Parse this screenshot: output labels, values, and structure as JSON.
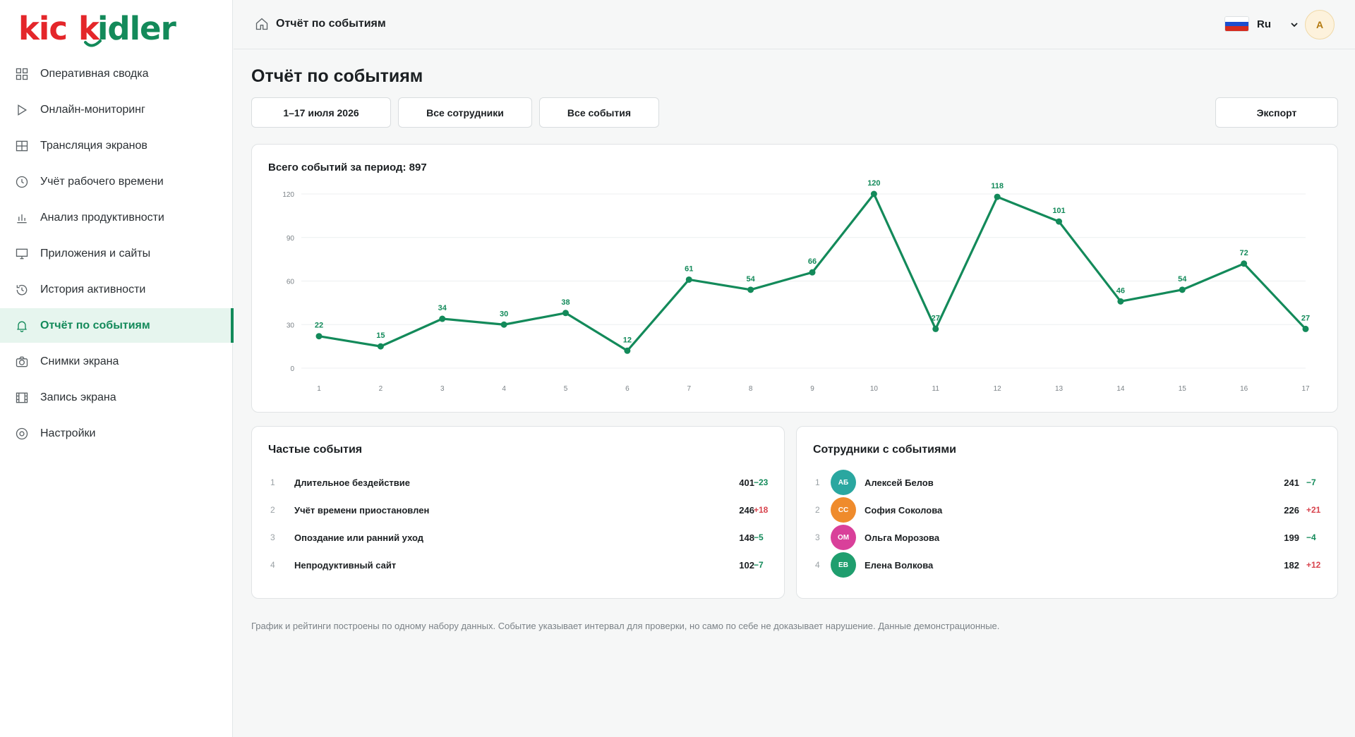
{
  "app": {
    "logo_text": "kickidler"
  },
  "sidebar": {
    "items": [
      {
        "label": "Оперативная сводка",
        "icon": "grid-icon"
      },
      {
        "label": "Онлайн-мониторинг",
        "icon": "play-icon"
      },
      {
        "label": "Трансляция экранов",
        "icon": "screens-icon"
      },
      {
        "label": "Учёт рабочего времени",
        "icon": "clock-icon"
      },
      {
        "label": "Анализ продуктивности",
        "icon": "bar-chart-icon"
      },
      {
        "label": "Приложения и сайты",
        "icon": "monitor-icon"
      },
      {
        "label": "История активности",
        "icon": "history-icon"
      },
      {
        "label": "Отчёт по событиям",
        "icon": "bell-icon",
        "active": true
      },
      {
        "label": "Снимки экрана",
        "icon": "camera-icon"
      },
      {
        "label": "Запись экрана",
        "icon": "film-icon"
      },
      {
        "label": "Настройки",
        "icon": "settings-icon"
      }
    ]
  },
  "topbar": {
    "breadcrumb": "Отчёт по событиям",
    "language": "Ru",
    "avatar_initial": "А"
  },
  "page": {
    "title": "Отчёт по событиям",
    "filters": {
      "date_range": "1–17 июля 2026",
      "employees": "Все сотрудники",
      "events": "Все события"
    },
    "export_label": "Экспорт"
  },
  "chart_card": {
    "title": "Всего событий за период: 897"
  },
  "chart_data": {
    "type": "line",
    "title": "Всего событий за период: 897",
    "x": [
      1,
      2,
      3,
      4,
      5,
      6,
      7,
      8,
      9,
      10,
      11,
      12,
      13,
      14,
      15,
      16,
      17
    ],
    "values": [
      22,
      15,
      34,
      30,
      38,
      12,
      61,
      54,
      66,
      120,
      27,
      118,
      101,
      46,
      54,
      72,
      27
    ],
    "ylim": [
      0,
      120
    ],
    "yticks": [
      0,
      30,
      60,
      90,
      120
    ],
    "grid": true,
    "data_labels": true,
    "color": "#138a5a"
  },
  "frequent_events": {
    "title": "Частые события",
    "rows": [
      {
        "rank": "1",
        "name": "Длительное бездействие",
        "value": "401",
        "delta": "−23",
        "trend": "neg"
      },
      {
        "rank": "2",
        "name": "Учёт времени приостановлен",
        "value": "246",
        "delta": "+18",
        "trend": "pos"
      },
      {
        "rank": "3",
        "name": "Опоздание или ранний уход",
        "value": "148",
        "delta": "−5",
        "trend": "neg"
      },
      {
        "rank": "4",
        "name": "Непродуктивный сайт",
        "value": "102",
        "delta": "−7",
        "trend": "neg"
      }
    ]
  },
  "employees_with_events": {
    "title": "Сотрудники с событиями",
    "rows": [
      {
        "rank": "1",
        "initials": "АБ",
        "name": "Алексей Белов",
        "value": "241",
        "delta": "−7",
        "trend": "neg",
        "color": "#2aa7a0"
      },
      {
        "rank": "2",
        "initials": "СС",
        "name": "София Соколова",
        "value": "226",
        "delta": "+21",
        "trend": "pos",
        "color": "#ef8b2c"
      },
      {
        "rank": "3",
        "initials": "ОМ",
        "name": "Ольга Морозова",
        "value": "199",
        "delta": "−4",
        "trend": "neg",
        "color": "#d9409a"
      },
      {
        "rank": "4",
        "initials": "ЕВ",
        "name": "Елена Волкова",
        "value": "182",
        "delta": "+12",
        "trend": "pos",
        "color": "#1f9e6e"
      }
    ]
  },
  "footnote": "График и рейтинги построены по одному набору данных. Событие указывает интервал для проверки, но само по себе не доказывает нарушение. Данные демонстрационные.",
  "colors": {
    "accent": "#138a5a",
    "negative_delta": "#138a5a",
    "positive_delta": "#d8434d"
  }
}
